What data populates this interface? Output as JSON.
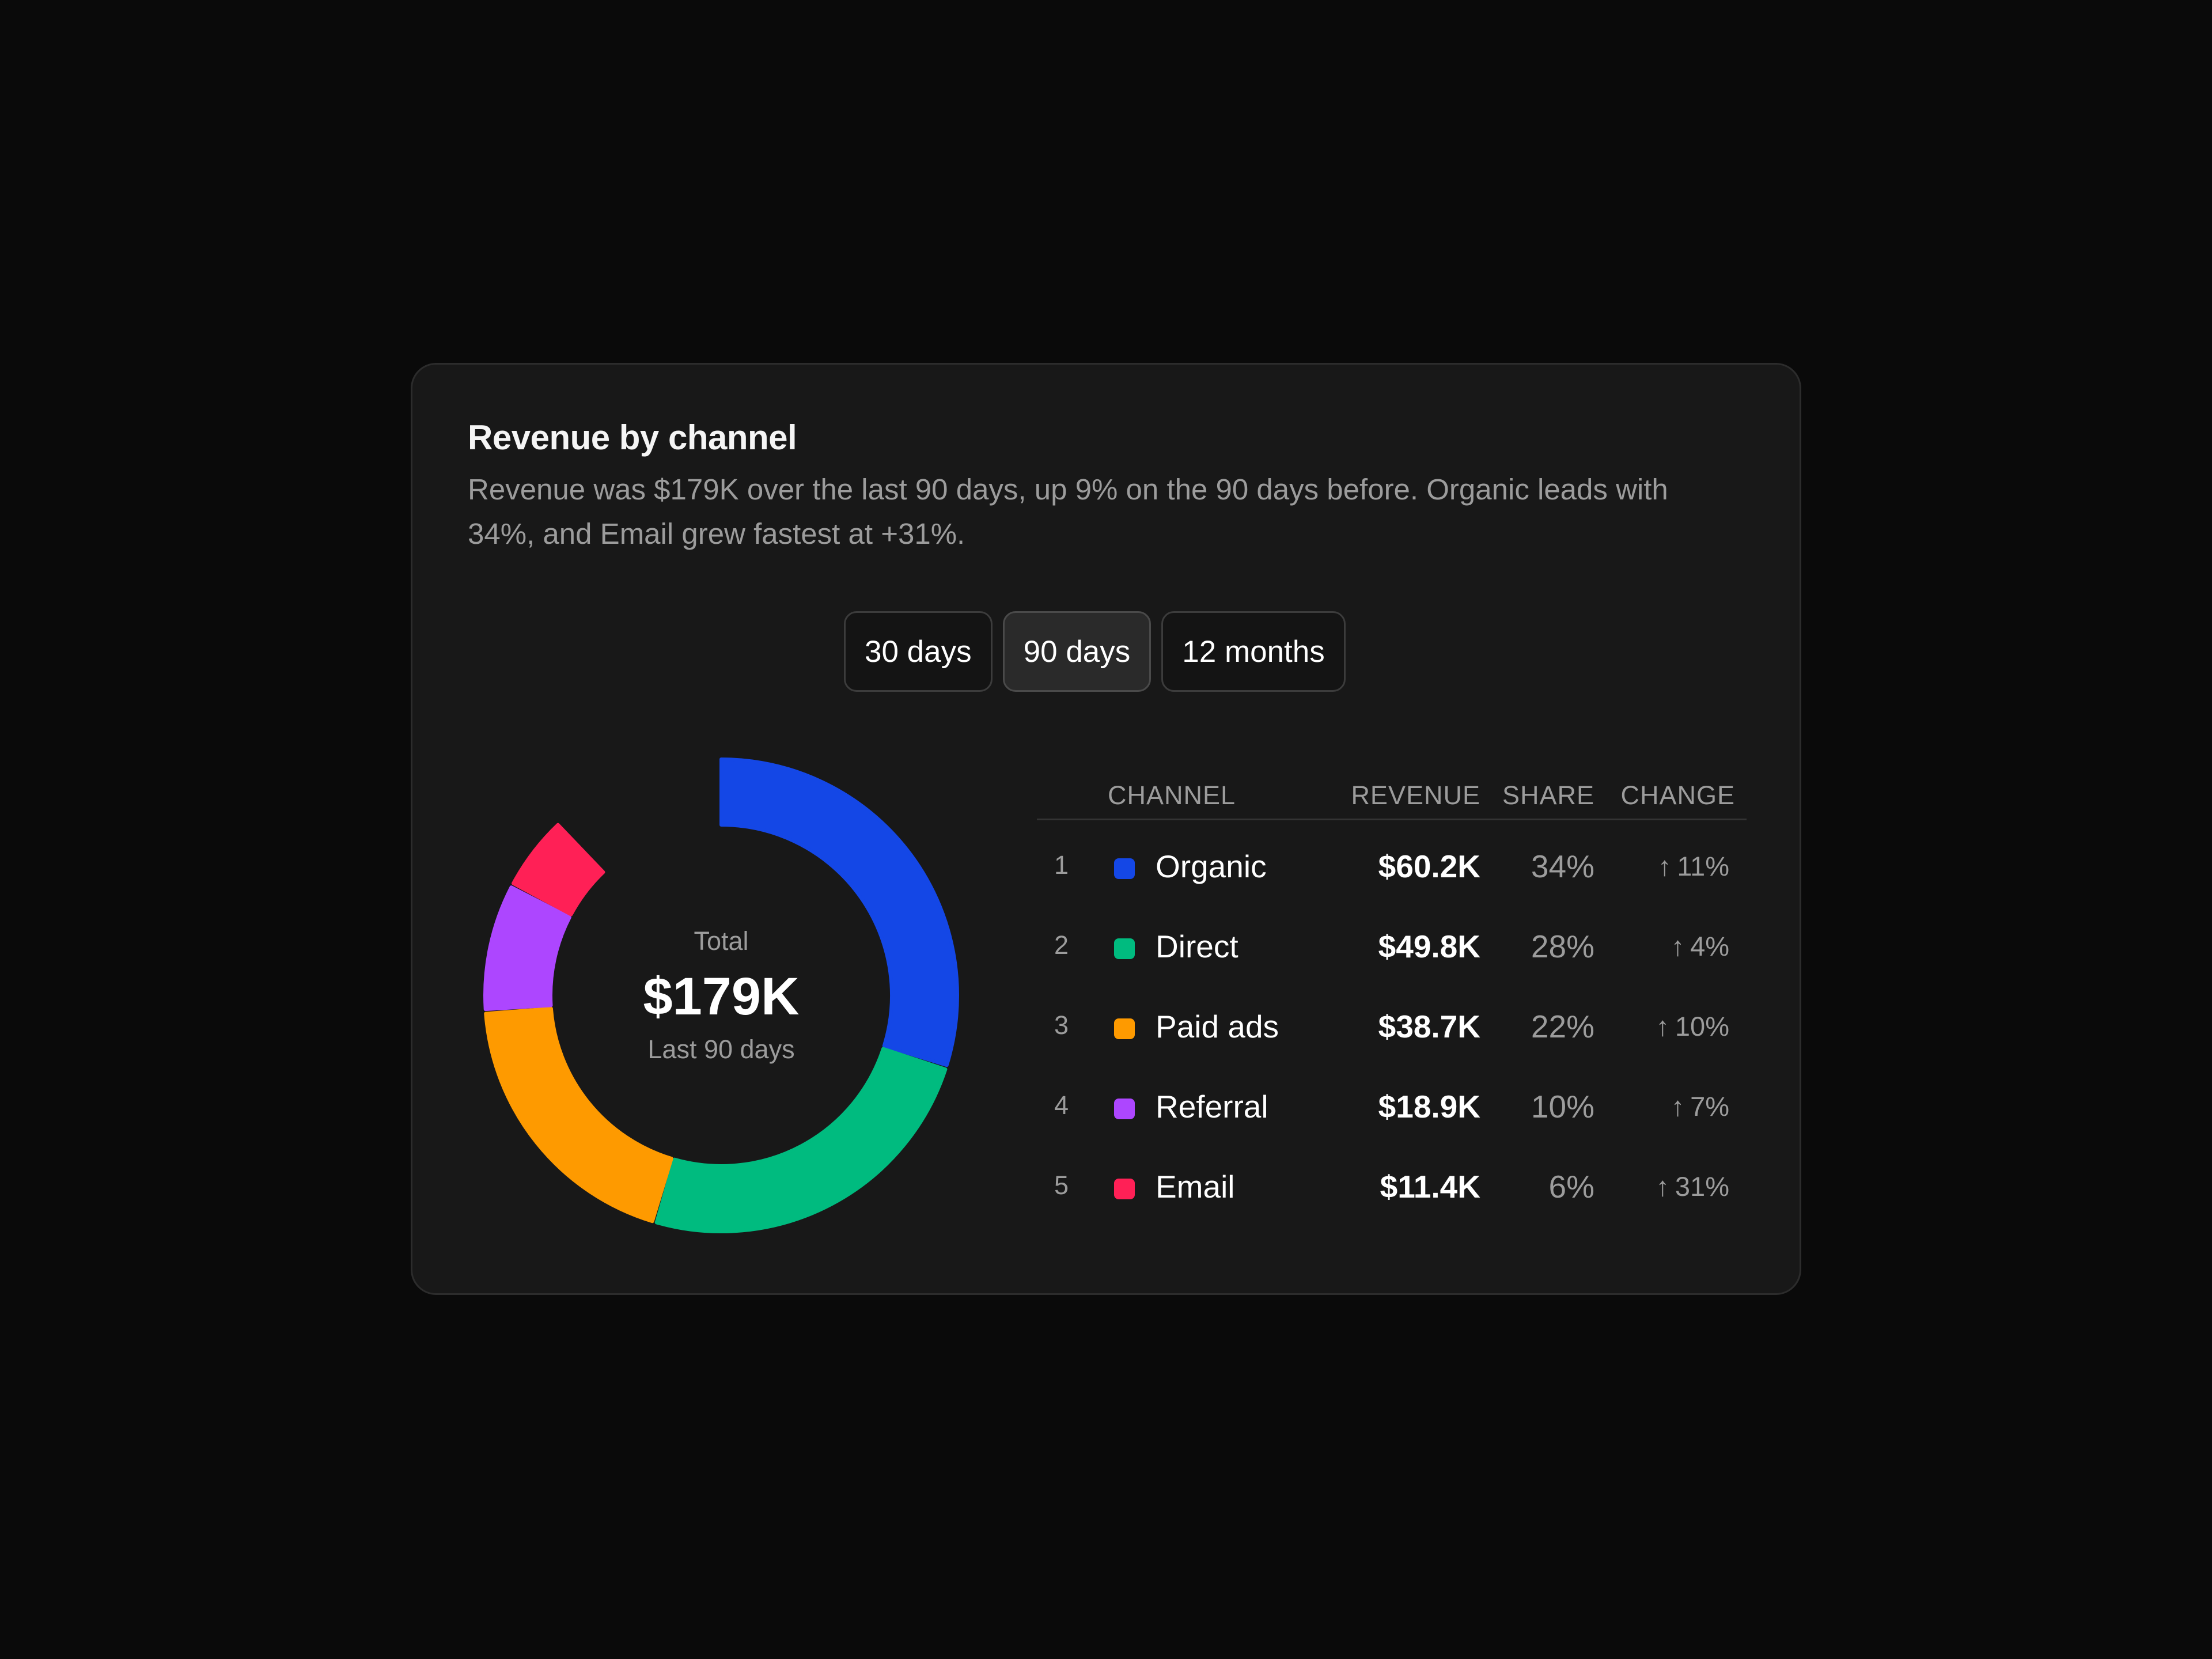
{
  "card": {
    "title": "Revenue by channel",
    "description": "Revenue was $179K over the last 90 days, up 9% on the 90 days before. Organic leads with 34%, and Email grew fastest at +31%."
  },
  "ranges": [
    {
      "label": "30 days",
      "active": false
    },
    {
      "label": "90 days",
      "active": true
    },
    {
      "label": "12 months",
      "active": false
    }
  ],
  "donut": {
    "total_label": "Total",
    "total_value": "$179K",
    "period_label": "Last 90 days"
  },
  "table": {
    "headers": {
      "channel": "CHANNEL",
      "revenue": "REVENUE",
      "share": "SHARE",
      "change": "CHANGE"
    },
    "rows": [
      {
        "rank": "1",
        "channel": "Organic",
        "revenue": "$60.2K",
        "share": "34%",
        "change": "11%",
        "color": "#1447e6"
      },
      {
        "rank": "2",
        "channel": "Direct",
        "revenue": "$49.8K",
        "share": "28%",
        "change": "4%",
        "color": "#00bb7f"
      },
      {
        "rank": "3",
        "channel": "Paid ads",
        "revenue": "$38.7K",
        "share": "22%",
        "change": "10%",
        "color": "#fe9a00"
      },
      {
        "rank": "4",
        "channel": "Referral",
        "revenue": "$18.9K",
        "share": "10%",
        "change": "7%",
        "color": "#ad46ff"
      },
      {
        "rank": "5",
        "channel": "Email",
        "revenue": "$11.4K",
        "share": "6%",
        "change": "31%",
        "color": "#ff2056"
      }
    ]
  },
  "chart_data": {
    "type": "pie",
    "categories": [
      "Organic",
      "Direct",
      "Paid ads",
      "Referral",
      "Email"
    ],
    "values": [
      60.2,
      49.8,
      38.7,
      18.9,
      11.4
    ],
    "shares": [
      34,
      28,
      22,
      10,
      6
    ],
    "colors": [
      "#1447e6",
      "#00bb7f",
      "#fe9a00",
      "#ad46ff",
      "#ff2056"
    ]
  }
}
